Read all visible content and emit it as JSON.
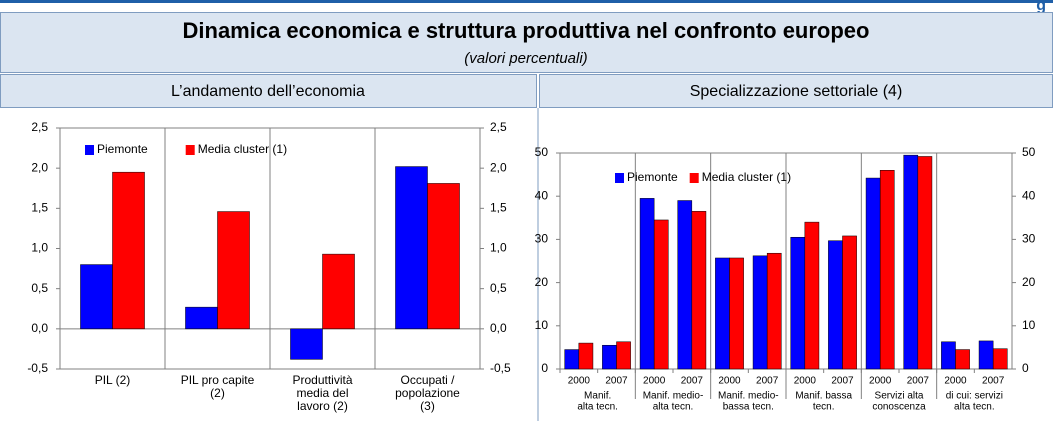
{
  "header": {
    "title": "Dinamica economica e struttura produttiva nel confronto europeo",
    "subtitle": "(valori percentuali)",
    "corner": "g"
  },
  "chart_data": [
    {
      "type": "bar",
      "title": "L’andamento dell’economia",
      "categories": [
        [
          "PIL (2)"
        ],
        [
          "PIL pro capite",
          "(2)"
        ],
        [
          "Produttività",
          "media del",
          "lavoro (2)"
        ],
        [
          "Occupati /",
          "popolazione",
          "(3)"
        ]
      ],
      "series": [
        {
          "name": "Piemonte",
          "color": "#0000ff",
          "values": [
            0.8,
            0.27,
            -0.38,
            2.02
          ]
        },
        {
          "name": "Media cluster (1)",
          "color": "#ff0000",
          "values": [
            1.95,
            1.46,
            0.93,
            1.81
          ]
        }
      ],
      "ylim": [
        -0.5,
        2.5
      ],
      "yticks": [
        {
          "value": -0.5,
          "label": "-0,5"
        },
        {
          "value": 0,
          "label": "0,0"
        },
        {
          "value": 0.5,
          "label": "0,5"
        },
        {
          "value": 1,
          "label": "1,0"
        },
        {
          "value": 1.5,
          "label": "1,5"
        },
        {
          "value": 2,
          "label": "2,0"
        },
        {
          "value": 2.5,
          "label": "2,5"
        }
      ],
      "legend": "top-left"
    },
    {
      "type": "bar",
      "title": "Specializzazione settoriale (4)",
      "categories": [
        "2000",
        "2007",
        "2000",
        "2007",
        "2000",
        "2007",
        "2000",
        "2007",
        "2000",
        "2007",
        "2000",
        "2007"
      ],
      "groups": [
        [
          "Manif.",
          "alta tecn."
        ],
        [
          "Manif. medio-",
          "alta tecn."
        ],
        [
          "Manif. medio-",
          "bassa tecn."
        ],
        [
          "Manif. bassa",
          "tecn."
        ],
        [
          "Servizi alta",
          "conoscenza"
        ],
        [
          "di cui: servizi",
          "alta tecn."
        ]
      ],
      "series": [
        {
          "name": "Piemonte",
          "color": "#0000ff",
          "values": [
            4.5,
            5.5,
            39.5,
            39,
            25.7,
            26.2,
            30.5,
            29.7,
            44.2,
            49.5,
            6.3,
            6.5
          ]
        },
        {
          "name": "Media cluster (1)",
          "color": "#ff0000",
          "values": [
            6,
            6.3,
            34.5,
            36.5,
            25.7,
            26.8,
            34,
            30.8,
            46,
            49.2,
            4.5,
            4.7
          ]
        }
      ],
      "ylim": [
        0,
        50
      ],
      "yticks": [
        0,
        10,
        20,
        30,
        40,
        50
      ],
      "legend": "top-left"
    }
  ]
}
